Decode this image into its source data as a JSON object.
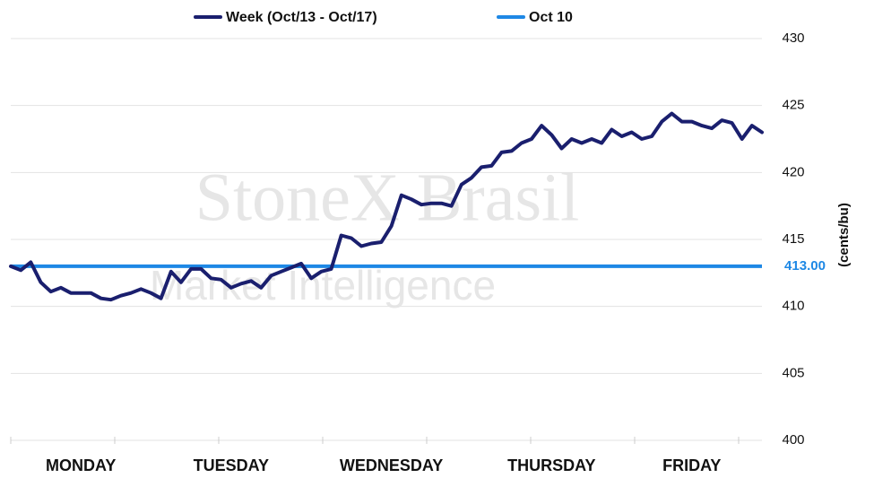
{
  "chart_data": {
    "type": "line",
    "watermark": {
      "brand": "StoneX Brasil",
      "sub": "Market Intelligence"
    },
    "y_label": "(cents/bu)",
    "categories": [
      null,
      null,
      null,
      null,
      null,
      null,
      null,
      "MONDAY",
      null,
      null,
      null,
      null,
      null,
      null,
      null,
      null,
      null,
      null,
      null,
      null,
      null,
      null,
      "TUESDAY",
      null,
      null,
      null,
      null,
      null,
      null,
      null,
      null,
      null,
      null,
      null,
      null,
      null,
      null,
      null,
      "WEDNESDAY",
      null,
      null,
      null,
      null,
      null,
      null,
      null,
      null,
      null,
      null,
      null,
      null,
      null,
      null,
      null,
      "THURSDAY",
      null,
      null,
      null,
      null,
      null,
      null,
      null,
      null,
      null,
      null,
      null,
      null,
      null,
      "FRIDAY",
      null,
      null,
      null,
      null,
      null,
      null,
      null
    ],
    "series": [
      {
        "name": "Week (Oct/13 - Oct/17)",
        "color": "#1a1f6e",
        "values": [
          413.0,
          412.7,
          413.3,
          411.8,
          411.1,
          411.4,
          411.0,
          411.0,
          411.0,
          410.6,
          410.5,
          410.8,
          411.0,
          411.3,
          411.0,
          410.6,
          412.6,
          411.8,
          412.8,
          412.8,
          412.1,
          412.0,
          411.4,
          411.7,
          411.9,
          411.4,
          412.3,
          412.6,
          412.9,
          413.2,
          412.1,
          412.6,
          412.8,
          415.3,
          415.1,
          414.5,
          414.7,
          414.8,
          416.0,
          418.3,
          418.0,
          417.6,
          417.7,
          417.7,
          417.5,
          419.1,
          419.6,
          420.4,
          420.5,
          421.5,
          421.6,
          422.2,
          422.5,
          423.5,
          422.8,
          421.8,
          422.5,
          422.2,
          422.5,
          422.2,
          423.2,
          422.7,
          423.0,
          422.5,
          422.7,
          423.8,
          424.4,
          423.8,
          423.8,
          423.5,
          423.3,
          423.9,
          423.7,
          422.5,
          423.5,
          423.0
        ]
      }
    ],
    "reference_line": {
      "name": "Oct 10",
      "color": "#1e88e5",
      "value": 413,
      "value_label": "413.00"
    },
    "ylim": [
      400,
      430
    ],
    "yticks": [
      400,
      405,
      410,
      415,
      420,
      425,
      430
    ],
    "grid": true
  }
}
